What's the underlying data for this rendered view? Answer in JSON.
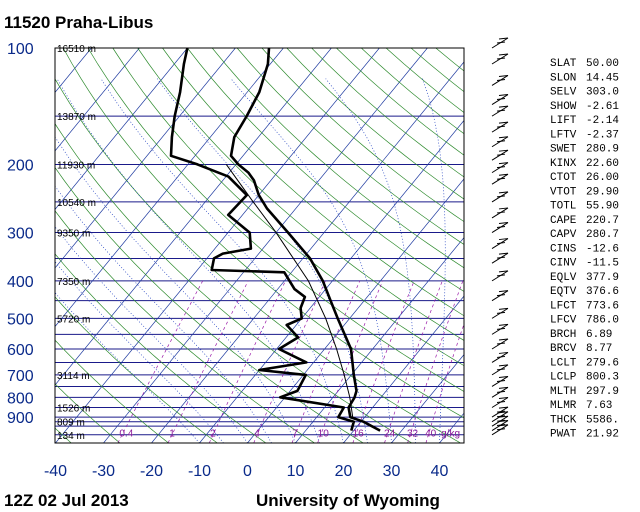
{
  "station_title": "11520  Praha-Libus",
  "footer_left": "12Z 02 Jul 2013",
  "footer_right": "University of Wyoming",
  "chart_data": {
    "type": "skew-t log-p sounding",
    "pressure_axis_ticks": [
      "100",
      "200",
      "300",
      "400",
      "500",
      "600",
      "700",
      "800",
      "900"
    ],
    "pressure_ticks_hpa": [
      100,
      200,
      300,
      400,
      500,
      600,
      700,
      800,
      900
    ],
    "temperature_axis_ticks": [
      "-40",
      "-30",
      "-20",
      "-10",
      "0",
      "10",
      "20",
      "30",
      "40"
    ],
    "temperature_ticks_c": [
      -40,
      -30,
      -20,
      -10,
      0,
      10,
      20,
      30,
      40
    ],
    "x_range_c": [
      -40,
      45
    ],
    "p_range_hpa": [
      100,
      1050
    ],
    "isobars_hpa": [
      100,
      150,
      200,
      250,
      300,
      350,
      400,
      450,
      500,
      550,
      600,
      650,
      700,
      750,
      800,
      850,
      900,
      925,
      950,
      1000
    ],
    "height_labels": [
      {
        "text": "16510 m",
        "p": 100
      },
      {
        "text": "13870 m",
        "p": 150
      },
      {
        "text": "11930 m",
        "p": 200
      },
      {
        "text": "10540 m",
        "p": 250
      },
      {
        "text": "9350 m",
        "p": 300
      },
      {
        "text": "7350 m",
        "p": 400
      },
      {
        "text": "5720 m",
        "p": 500
      },
      {
        "text": "3114 m",
        "p": 700
      },
      {
        "text": "1526 m",
        "p": 850
      },
      {
        "text": "809 m",
        "p": 925
      },
      {
        "text": "134 m",
        "p": 1000
      }
    ],
    "mixing_ratio_labels": [
      "0.4",
      "1",
      "2",
      "4",
      "7",
      "10",
      "16",
      "24",
      "32",
      "40",
      "g/kg"
    ],
    "mixing_ratio_values": [
      0.4,
      1,
      2,
      4,
      7,
      10,
      16,
      24,
      32,
      40
    ],
    "temperature_profile": [
      {
        "p": 975,
        "t": 25.5
      },
      {
        "p": 925,
        "t": 20.5
      },
      {
        "p": 900,
        "t": 17.0
      },
      {
        "p": 850,
        "t": 15.0
      },
      {
        "p": 800,
        "t": 14.5
      },
      {
        "p": 770,
        "t": 13.8
      },
      {
        "p": 700,
        "t": 10.5
      },
      {
        "p": 600,
        "t": 5.5
      },
      {
        "p": 500,
        "t": -2.5
      },
      {
        "p": 450,
        "t": -7.0
      },
      {
        "p": 400,
        "t": -12.0
      },
      {
        "p": 350,
        "t": -18.5
      },
      {
        "p": 300,
        "t": -27.5
      },
      {
        "p": 260,
        "t": -36.0
      },
      {
        "p": 240,
        "t": -40.0
      },
      {
        "p": 220,
        "t": -43.5
      },
      {
        "p": 210,
        "t": -46.0
      },
      {
        "p": 200,
        "t": -49.5
      },
      {
        "p": 190,
        "t": -52.5
      },
      {
        "p": 170,
        "t": -55.0
      },
      {
        "p": 150,
        "t": -56.0
      },
      {
        "p": 130,
        "t": -57.5
      },
      {
        "p": 110,
        "t": -60.5
      },
      {
        "p": 100,
        "t": -63.0
      }
    ],
    "dewpoint_profile": [
      {
        "p": 975,
        "t": 19.5
      },
      {
        "p": 925,
        "t": 18.5
      },
      {
        "p": 900,
        "t": 14.5
      },
      {
        "p": 850,
        "t": 14.0
      },
      {
        "p": 800,
        "t": -1.0
      },
      {
        "p": 770,
        "t": 1.5
      },
      {
        "p": 700,
        "t": 0.5
      },
      {
        "p": 680,
        "t": -10.0
      },
      {
        "p": 650,
        "t": -1.5
      },
      {
        "p": 600,
        "t": -9.5
      },
      {
        "p": 560,
        "t": -7.5
      },
      {
        "p": 520,
        "t": -12.0
      },
      {
        "p": 500,
        "t": -10.0
      },
      {
        "p": 470,
        "t": -12.0
      },
      {
        "p": 440,
        "t": -13.0
      },
      {
        "p": 420,
        "t": -16.5
      },
      {
        "p": 380,
        "t": -21.5
      },
      {
        "p": 375,
        "t": -37.0
      },
      {
        "p": 350,
        "t": -38.5
      },
      {
        "p": 340,
        "t": -37.5
      },
      {
        "p": 330,
        "t": -32.5
      },
      {
        "p": 300,
        "t": -35.5
      },
      {
        "p": 270,
        "t": -43.0
      },
      {
        "p": 240,
        "t": -42.5
      },
      {
        "p": 215,
        "t": -49.5
      },
      {
        "p": 200,
        "t": -58.0
      },
      {
        "p": 190,
        "t": -65.0
      },
      {
        "p": 170,
        "t": -68.0
      },
      {
        "p": 150,
        "t": -71.0
      },
      {
        "p": 130,
        "t": -74.0
      },
      {
        "p": 110,
        "t": -78.0
      },
      {
        "p": 100,
        "t": -80.0
      }
    ],
    "parcel_profile": [
      {
        "p": 975,
        "t": 25.5
      },
      {
        "p": 900,
        "t": 17.5
      },
      {
        "p": 800,
        "t": 13.5
      },
      {
        "p": 700,
        "t": 8.5
      },
      {
        "p": 600,
        "t": 2.5
      },
      {
        "p": 500,
        "t": -5.0
      },
      {
        "p": 400,
        "t": -15.0
      },
      {
        "p": 300,
        "t": -30.0
      },
      {
        "p": 250,
        "t": -40.0
      },
      {
        "p": 200,
        "t": -52.0
      }
    ],
    "wind_barb_pressures_hpa": [
      100,
      110,
      125,
      140,
      150,
      165,
      180,
      195,
      210,
      225,
      250,
      275,
      300,
      330,
      360,
      400,
      450,
      500,
      550,
      600,
      650,
      700,
      750,
      800,
      850,
      900,
      925,
      950,
      975,
      1000
    ]
  },
  "indices": [
    {
      "name": "SLAT",
      "value": "50.00"
    },
    {
      "name": "SLON",
      "value": "14.45"
    },
    {
      "name": "SELV",
      "value": "303.0"
    },
    {
      "name": "SHOW",
      "value": "-2.61"
    },
    {
      "name": "LIFT",
      "value": "-2.14"
    },
    {
      "name": "LFTV",
      "value": "-2.37"
    },
    {
      "name": "SWET",
      "value": "280.9"
    },
    {
      "name": "KINX",
      "value": "22.60"
    },
    {
      "name": "CTOT",
      "value": "26.00"
    },
    {
      "name": "VTOT",
      "value": "29.90"
    },
    {
      "name": "TOTL",
      "value": "55.90"
    },
    {
      "name": "CAPE",
      "value": "220.7"
    },
    {
      "name": "CAPV",
      "value": "280.7"
    },
    {
      "name": "CINS",
      "value": "-12.6"
    },
    {
      "name": "CINV",
      "value": "-11.5"
    },
    {
      "name": "EQLV",
      "value": "377.9"
    },
    {
      "name": "EQTV",
      "value": "376.6"
    },
    {
      "name": "LFCT",
      "value": "773.6"
    },
    {
      "name": "LFCV",
      "value": "786.0"
    },
    {
      "name": "BRCH",
      "value": "6.89"
    },
    {
      "name": "BRCV",
      "value": "8.77"
    },
    {
      "name": "LCLT",
      "value": "279.6"
    },
    {
      "name": "LCLP",
      "value": "800.3"
    },
    {
      "name": "MLTH",
      "value": "297.9"
    },
    {
      "name": "MLMR",
      "value": "7.63"
    },
    {
      "name": "THCK",
      "value": "5586."
    },
    {
      "name": "PWAT",
      "value": "21.92"
    }
  ],
  "colors": {
    "isobar": "#1a1a8a",
    "isotherm": "#1e3aa0",
    "dry_adiabat": "#2e8b2e",
    "moist_adiabat": "#2040c0",
    "mixing_ratio": "#9a1aa8",
    "profile": "#000000",
    "axis_text": "#0a2a8a"
  }
}
